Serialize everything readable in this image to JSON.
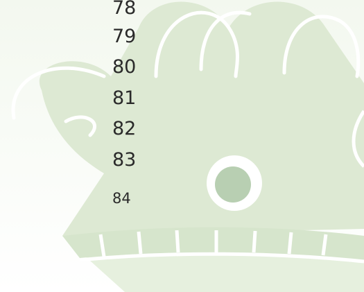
{
  "list": {
    "items": [
      78,
      79,
      80,
      81,
      82,
      83,
      84
    ]
  }
}
